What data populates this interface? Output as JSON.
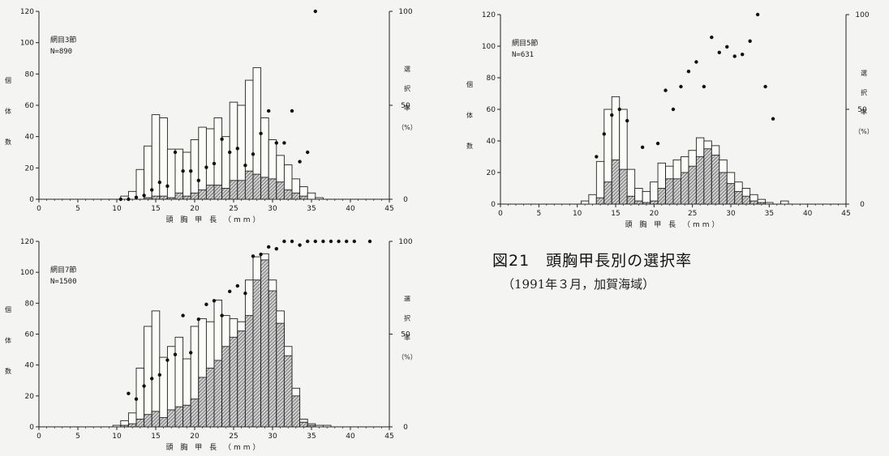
{
  "figure_caption": {
    "title": "図21　頭胸甲長別の選択率",
    "subtitle": "（1991年３月，加賀海域）"
  },
  "chart_data": [
    {
      "type": "bar",
      "station": "網目3節",
      "n_label": "N=890",
      "x_label": "頭 胸 甲 長 （mm）",
      "y_left_label": [
        "個",
        "体",
        "数"
      ],
      "y_right_label": [
        "選",
        "択",
        "率",
        "（%）"
      ],
      "xlim": [
        0,
        45
      ],
      "ylim": [
        0,
        120
      ],
      "y2lim": [
        0,
        100
      ],
      "x_ticks": [
        0,
        5,
        10,
        15,
        20,
        25,
        30,
        35,
        40,
        45
      ],
      "y_ticks": [
        0,
        20,
        40,
        60,
        80,
        100,
        120
      ],
      "y2_ticks": [
        0,
        50,
        100
      ],
      "bin_width": 1,
      "bins_x": [
        11,
        12,
        13,
        14,
        15,
        16,
        17,
        18,
        19,
        20,
        21,
        22,
        23,
        24,
        25,
        26,
        27,
        28,
        29,
        30,
        31,
        32,
        33,
        34,
        35,
        36
      ],
      "series": [
        {
          "values": [
            2,
            5,
            19,
            34,
            54,
            52,
            32,
            32,
            30,
            38,
            46,
            45,
            52,
            40,
            62,
            60,
            76,
            84,
            52,
            38,
            28,
            22,
            13,
            8,
            4,
            1
          ]
        },
        {
          "values": [
            0,
            0,
            0,
            1,
            2,
            2,
            1,
            4,
            2,
            4,
            6,
            9,
            9,
            7,
            12,
            12,
            18,
            16,
            14,
            13,
            11,
            6,
            4,
            2,
            0,
            0
          ]
        }
      ],
      "rate_points": {
        "x": [
          10.5,
          11.5,
          12.5,
          13.5,
          14.5,
          15.5,
          16.5,
          17.5,
          18.5,
          19.5,
          20.5,
          21.5,
          22.5,
          23.5,
          24.5,
          25.5,
          26.5,
          27.5,
          28.5,
          29.5,
          30.5,
          31.5,
          32.5,
          33.5,
          34.5,
          35.5
        ],
        "y": [
          0,
          0,
          1,
          2,
          5,
          9,
          7,
          25,
          15,
          15,
          10,
          17,
          19,
          32,
          25,
          27,
          18,
          24,
          35,
          47,
          30,
          30,
          47,
          20,
          25,
          100
        ]
      }
    },
    {
      "type": "bar",
      "station": "網目5節",
      "n_label": "N=631",
      "x_label": "頭 胸 甲 長 （mm）",
      "y_left_label": [
        "個",
        "体",
        "数"
      ],
      "y_right_label": [
        "選",
        "択",
        "率",
        "（%）"
      ],
      "xlim": [
        0,
        45
      ],
      "ylim": [
        0,
        120
      ],
      "y2lim": [
        0,
        100
      ],
      "x_ticks": [
        0,
        5,
        10,
        15,
        20,
        25,
        30,
        35,
        40,
        45
      ],
      "y_ticks": [
        0,
        20,
        40,
        60,
        80,
        100,
        120
      ],
      "y2_ticks": [
        0,
        50,
        100
      ],
      "bin_width": 1,
      "bins_x": [
        11,
        12,
        13,
        14,
        15,
        16,
        17,
        18,
        19,
        20,
        21,
        22,
        23,
        24,
        25,
        26,
        27,
        28,
        29,
        30,
        31,
        32,
        33,
        34,
        35,
        36,
        37
      ],
      "series": [
        {
          "values": [
            2,
            6,
            27,
            60,
            68,
            60,
            22,
            10,
            8,
            14,
            26,
            24,
            28,
            30,
            34,
            42,
            40,
            37,
            28,
            20,
            14,
            10,
            6,
            3,
            1,
            0,
            2
          ]
        },
        {
          "values": [
            0,
            0,
            4,
            14,
            28,
            22,
            5,
            2,
            1,
            2,
            10,
            16,
            16,
            20,
            24,
            30,
            35,
            31,
            20,
            13,
            8,
            5,
            2,
            1,
            0,
            0,
            0
          ]
        }
      ],
      "rate_points": {
        "x": [
          12.5,
          13.5,
          14.5,
          15.5,
          16.5,
          18.5,
          20.5,
          21.5,
          22.5,
          23.5,
          24.5,
          25.5,
          26.5,
          27.5,
          28.5,
          29.5,
          30.5,
          31.5,
          32.5,
          33.5,
          34.5,
          35.5
        ],
        "y": [
          25,
          37,
          47,
          50,
          44,
          30,
          32,
          60,
          50,
          62,
          70,
          75,
          62,
          88,
          80,
          83,
          78,
          79,
          86,
          100,
          62,
          45
        ]
      }
    },
    {
      "type": "bar",
      "station": "網目7節",
      "n_label": "N=1500",
      "x_label": "頭 胸 甲 長 （mm）",
      "y_left_label": [
        "個",
        "体",
        "数"
      ],
      "y_right_label": [
        "選",
        "択",
        "率",
        "（%）"
      ],
      "xlim": [
        0,
        45
      ],
      "ylim": [
        0,
        120
      ],
      "y2lim": [
        0,
        100
      ],
      "x_ticks": [
        0,
        5,
        10,
        15,
        20,
        25,
        30,
        35,
        40,
        45
      ],
      "y_ticks": [
        0,
        20,
        40,
        60,
        80,
        100,
        120
      ],
      "y2_ticks": [
        0,
        50,
        100
      ],
      "bin_width": 1,
      "bins_x": [
        10,
        11,
        12,
        13,
        14,
        15,
        16,
        17,
        18,
        19,
        20,
        21,
        22,
        23,
        24,
        25,
        26,
        27,
        28,
        29,
        30,
        31,
        32,
        33,
        34,
        35,
        36,
        37
      ],
      "series": [
        {
          "values": [
            1,
            4,
            9,
            38,
            65,
            75,
            45,
            52,
            58,
            44,
            65,
            70,
            68,
            82,
            72,
            70,
            68,
            95,
            110,
            112,
            95,
            75,
            52,
            25,
            5,
            2,
            1,
            1
          ]
        },
        {
          "values": [
            0,
            1,
            2,
            5,
            8,
            10,
            6,
            11,
            13,
            14,
            18,
            32,
            38,
            43,
            52,
            58,
            62,
            72,
            95,
            108,
            88,
            67,
            46,
            20,
            3,
            1,
            0,
            0
          ]
        }
      ],
      "rate_points": {
        "x": [
          11.5,
          12.5,
          13.5,
          14.5,
          15.5,
          16.5,
          17.5,
          18.5,
          19.5,
          20.5,
          21.5,
          22.5,
          23.5,
          24.5,
          25.5,
          26.5,
          27.5,
          28.5,
          29.5,
          30.5,
          31.5,
          32.5,
          33.5,
          34.5,
          35.5,
          36.5,
          37.5,
          38.5,
          39.5,
          40.5,
          42.5
        ],
        "y": [
          18,
          15,
          22,
          26,
          28,
          36,
          39,
          60,
          40,
          58,
          66,
          68,
          60,
          73,
          76,
          72,
          92,
          93,
          97,
          96,
          100,
          100,
          98,
          100,
          100,
          100,
          100,
          100,
          100,
          100,
          100
        ]
      }
    }
  ]
}
